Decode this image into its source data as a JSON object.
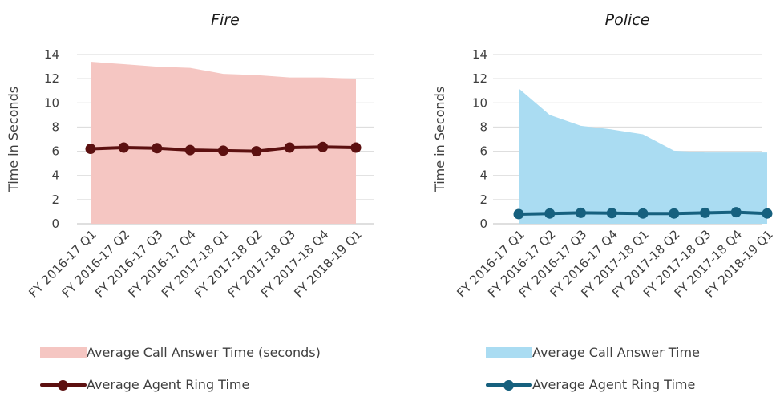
{
  "chart_data": [
    {
      "type": "area",
      "title": "Fire",
      "ylabel": "Time in Seconds",
      "xlabel": "",
      "ylim": [
        0,
        14
      ],
      "yticks": [
        "0",
        "2",
        "4",
        "6",
        "8",
        "10",
        "12",
        "14"
      ],
      "grid": true,
      "legend_position": "bottom",
      "categories": [
        "FY 2016-17 Q1",
        "FY 2016-17 Q2",
        "FY 2016-17 Q3",
        "FY 2016-17 Q4",
        "FY 2017-18 Q1",
        "FY 2017-18 Q2",
        "FY 2017-18 Q3",
        "FY 2017-18 Q4",
        "FY 2018-19 Q1"
      ],
      "series": [
        {
          "name": "Average Call Answer Time (seconds)",
          "kind": "area",
          "color": "#f5c6c2",
          "values": [
            13.4,
            13.2,
            13.0,
            12.9,
            12.4,
            12.3,
            12.1,
            12.1,
            12.0
          ]
        },
        {
          "name": "Average Agent Ring Time",
          "kind": "line",
          "color": "#5c1010",
          "values": [
            6.2,
            6.3,
            6.25,
            6.1,
            6.05,
            6.0,
            6.3,
            6.35,
            6.3
          ]
        }
      ]
    },
    {
      "type": "area",
      "title": "Police",
      "ylabel": "Time in Seconds",
      "xlabel": "",
      "ylim": [
        0,
        14
      ],
      "yticks": [
        "0",
        "2",
        "4",
        "6",
        "8",
        "10",
        "12",
        "14"
      ],
      "grid": true,
      "legend_position": "bottom",
      "categories": [
        "FY 2016-17 Q1",
        "FY 2016-17 Q2",
        "FY 2016-17 Q3",
        "FY 2016-17 Q4",
        "FY 2017-18 Q1",
        "FY 2017-18 Q2",
        "FY 2017-18 Q3",
        "FY 2017-18 Q4",
        "FY 2018-19 Q1"
      ],
      "series": [
        {
          "name": "Average Call Answer Time",
          "kind": "area",
          "color": "#aadcf2",
          "values": [
            11.2,
            9.0,
            8.1,
            7.8,
            7.4,
            6.05,
            5.9,
            5.9,
            5.9
          ]
        },
        {
          "name": "Average Agent Ring Time",
          "kind": "line",
          "color": "#16607e",
          "values": [
            0.8,
            0.85,
            0.9,
            0.88,
            0.85,
            0.85,
            0.9,
            0.95,
            0.85
          ]
        }
      ]
    }
  ]
}
